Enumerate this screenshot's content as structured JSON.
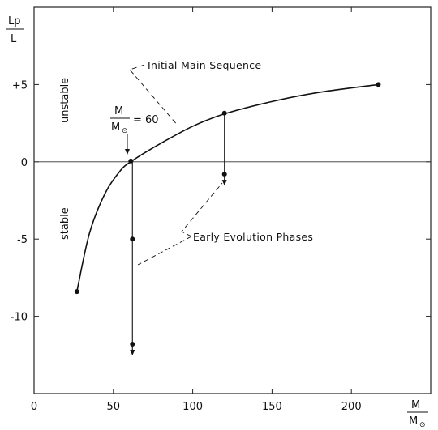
{
  "chart_data": {
    "type": "line",
    "y_axis": {
      "label_top": "Lp",
      "label_bottom": "L",
      "range": [
        -15,
        10
      ],
      "ticks": [
        {
          "value": 5,
          "label": "+5"
        },
        {
          "value": 0,
          "label": "0"
        },
        {
          "value": -5,
          "label": "-5"
        },
        {
          "value": -10,
          "label": "-10"
        }
      ]
    },
    "x_axis": {
      "label_top": "M",
      "label_bottom": "M",
      "label_subscript": "⊙",
      "range": [
        0,
        250
      ],
      "ticks": [
        {
          "value": 0,
          "label": "0"
        },
        {
          "value": 50,
          "label": "50"
        },
        {
          "value": 100,
          "label": "100"
        },
        {
          "value": 150,
          "label": "150"
        },
        {
          "value": 200,
          "label": "200"
        }
      ]
    },
    "zero_line": true,
    "grid": false,
    "curve": {
      "name": "Initial Main Sequence",
      "x": [
        27,
        35,
        45,
        55,
        61,
        70,
        80,
        100,
        120,
        150,
        180,
        217
      ],
      "y": [
        -8.4,
        -4.6,
        -2.0,
        -0.5,
        0.0,
        0.6,
        1.2,
        2.3,
        3.1,
        3.9,
        4.5,
        5.0
      ],
      "marked_points": [
        {
          "x": 27,
          "y": -8.4
        },
        {
          "x": 61,
          "y": 0.05
        },
        {
          "x": 120,
          "y": 3.15
        },
        {
          "x": 217,
          "y": 5.0
        }
      ]
    },
    "evolution_tracks": [
      {
        "x": 62,
        "points": [
          0.05,
          -5.0,
          -11.8
        ]
      },
      {
        "x": 120,
        "points": [
          3.15,
          -0.8
        ]
      }
    ],
    "labels": {
      "unstable": "unstable",
      "stable": "stable",
      "initial_main_sequence": "Initial Main Sequence",
      "early_evolution_phases": "Early Evolution Phases",
      "mass_annotation": {
        "numerator": "M",
        "denominator": "M",
        "subscript": "⊙",
        "value": "= 60"
      }
    }
  }
}
